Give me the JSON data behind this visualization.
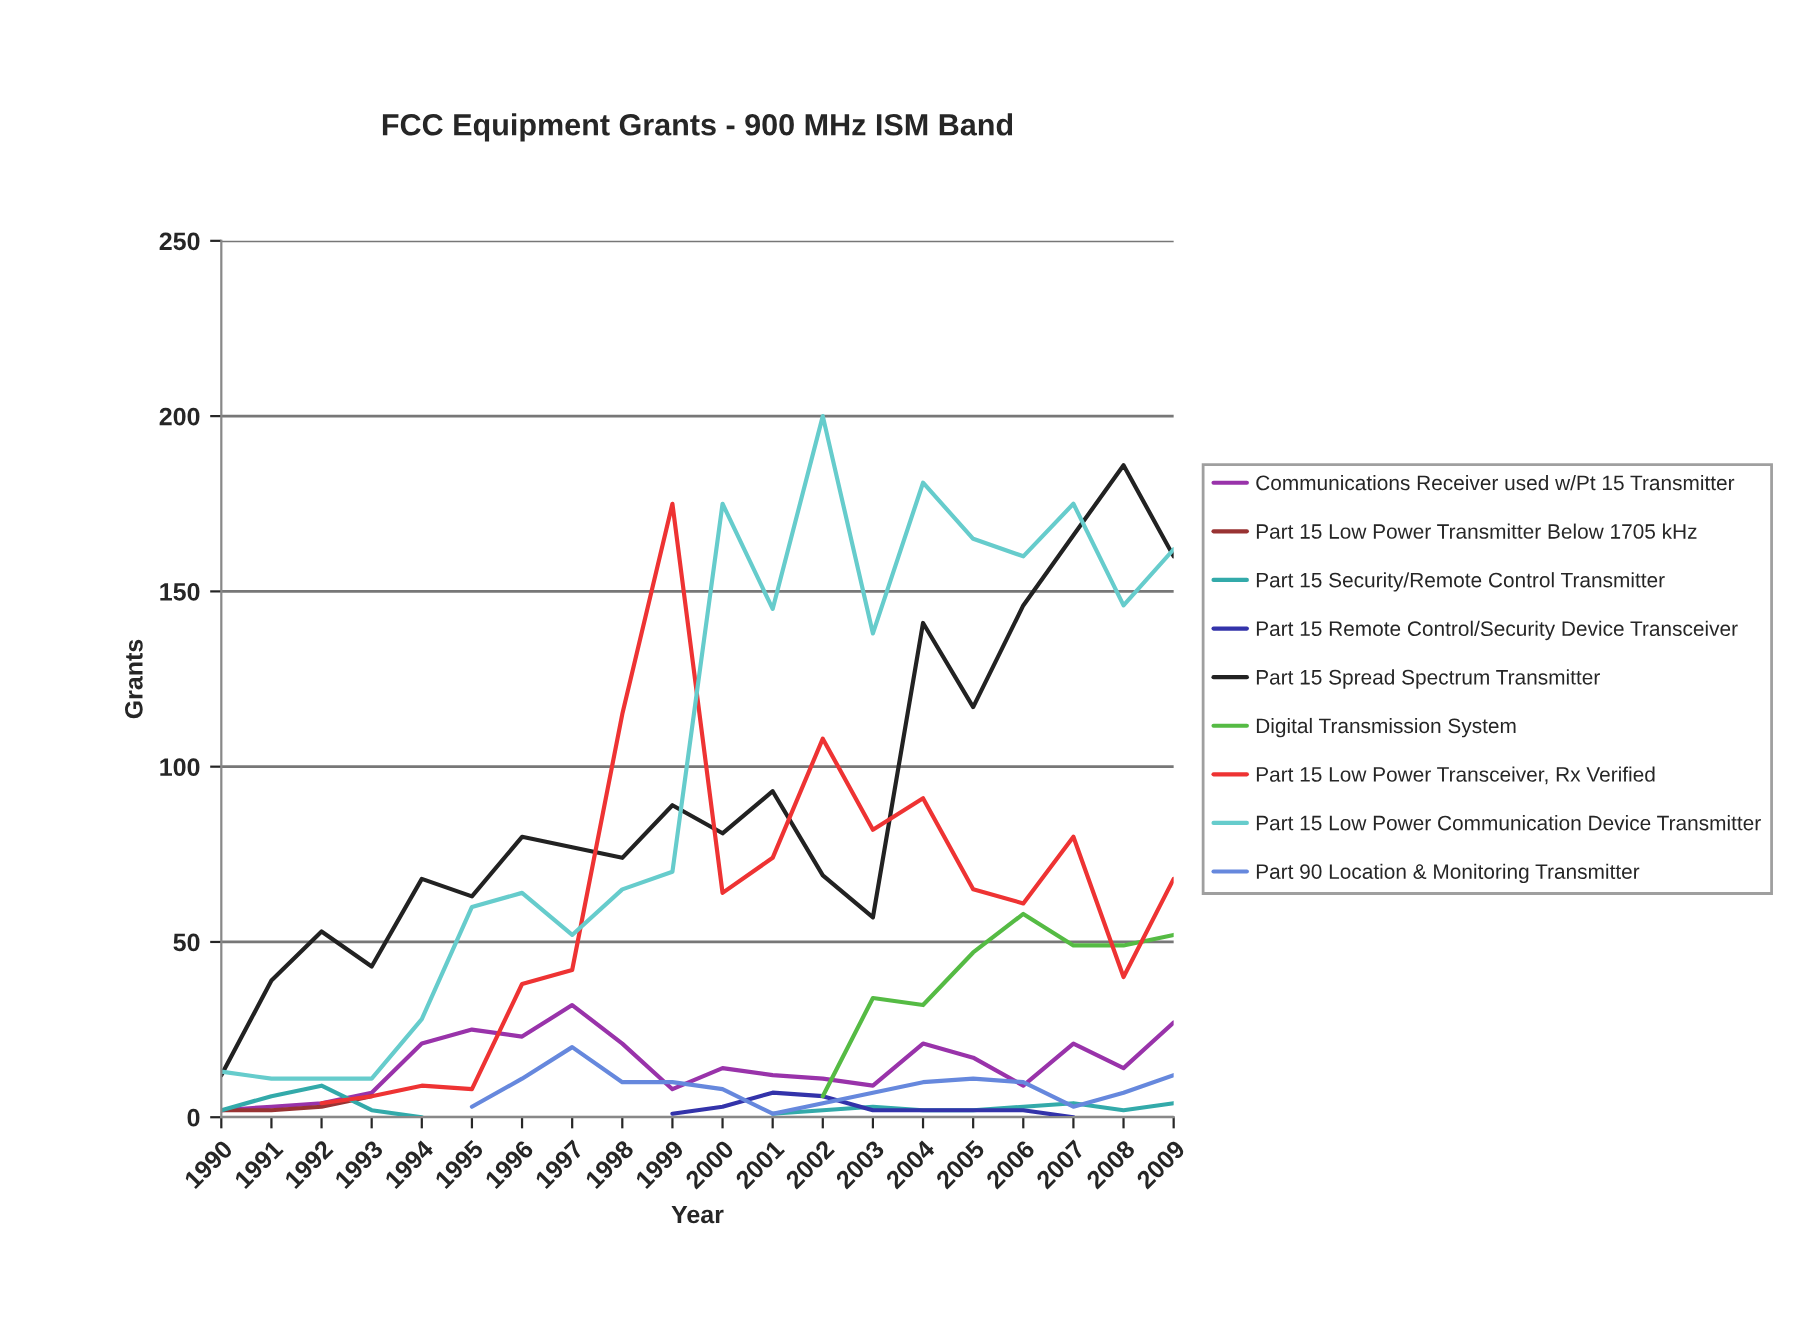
{
  "chart_data": {
    "type": "line",
    "title": "FCC Equipment Grants - 900 MHz ISM Band",
    "xlabel": "Year",
    "ylabel": "Grants",
    "categories": [
      "1990",
      "1991",
      "1992",
      "1993",
      "1994",
      "1995",
      "1996",
      "1997",
      "1998",
      "1999",
      "2000",
      "2001",
      "2002",
      "2003",
      "2004",
      "2005",
      "2006",
      "2007",
      "2008",
      "2009"
    ],
    "ylim": [
      0,
      250
    ],
    "yticks": [
      0,
      50,
      100,
      150,
      200,
      250
    ],
    "grid": "y",
    "legend": "right",
    "series": [
      {
        "name": "Communications Receiver used w/Pt 15 Transmitter",
        "color": "#9933aa",
        "values": [
          2,
          3,
          4,
          7,
          21,
          25,
          23,
          32,
          21,
          8,
          14,
          12,
          11,
          9,
          21,
          17,
          9,
          21,
          14,
          27
        ]
      },
      {
        "name": "Part 15 Low Power Transmitter Below 1705 kHz",
        "color": "#993333",
        "values": [
          2,
          2,
          3,
          6,
          null,
          null,
          null,
          null,
          null,
          null,
          null,
          null,
          null,
          null,
          null,
          null,
          null,
          null,
          null,
          null
        ]
      },
      {
        "name": "Part 15 Security/Remote Control Transmitter",
        "color": "#33aaaa",
        "values": [
          2,
          6,
          9,
          2,
          0,
          null,
          null,
          null,
          null,
          null,
          null,
          1,
          2,
          3,
          2,
          2,
          3,
          4,
          2,
          4
        ]
      },
      {
        "name": "Part 15 Remote Control/Security Device Transceiver",
        "color": "#3333aa",
        "values": [
          null,
          null,
          null,
          null,
          null,
          null,
          null,
          null,
          null,
          1,
          3,
          7,
          6,
          2,
          2,
          2,
          2,
          0,
          null,
          null
        ]
      },
      {
        "name": "Part 15 Spread Spectrum Transmitter",
        "color": "#222222",
        "values": [
          12,
          39,
          53,
          43,
          68,
          63,
          80,
          77,
          74,
          89,
          81,
          93,
          69,
          57,
          141,
          117,
          146,
          166,
          186,
          160
        ]
      },
      {
        "name": "Digital Transmission System",
        "color": "#55bb44",
        "values": [
          null,
          null,
          null,
          null,
          null,
          null,
          null,
          null,
          null,
          null,
          null,
          null,
          6,
          34,
          32,
          47,
          58,
          49,
          49,
          52
        ]
      },
      {
        "name": "Part 15 Low Power Transceiver, Rx Verified",
        "color": "#ee3333",
        "values": [
          null,
          null,
          4,
          6,
          9,
          8,
          38,
          42,
          115,
          175,
          64,
          74,
          108,
          82,
          91,
          65,
          61,
          80,
          40,
          68
        ]
      },
      {
        "name": "Part 15 Low Power Communication Device Transmitter",
        "color": "#66cccc",
        "values": [
          13,
          11,
          11,
          11,
          28,
          60,
          64,
          52,
          65,
          70,
          175,
          145,
          200,
          138,
          181,
          165,
          160,
          175,
          146,
          162
        ]
      },
      {
        "name": "Part 90 Location & Monitoring Transmitter",
        "color": "#6688dd",
        "values": [
          null,
          null,
          null,
          null,
          null,
          3,
          11,
          20,
          10,
          10,
          8,
          1,
          4,
          7,
          10,
          11,
          10,
          3,
          7,
          12
        ]
      }
    ]
  }
}
